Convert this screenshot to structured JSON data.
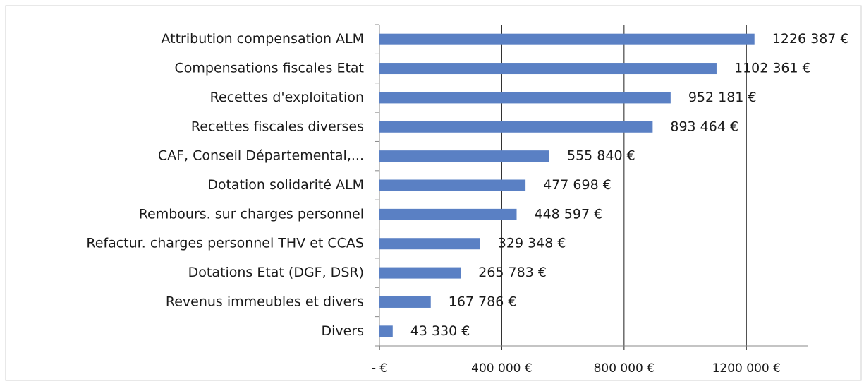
{
  "chart_data": {
    "type": "bar",
    "orientation": "horizontal",
    "categories": [
      "Attribution compensation ALM",
      "Compensations fiscales Etat",
      "Recettes d'exploitation",
      "Recettes fiscales diverses",
      "CAF, Conseil Départemental,...",
      "Dotation solidarité ALM",
      "Rembours. sur charges personnel",
      "Refactur. charges personnel THV et CCAS",
      "Dotations Etat (DGF, DSR)",
      "Revenus immeubles et divers",
      "Divers"
    ],
    "values": [
      1226387,
      1102361,
      952181,
      893464,
      555840,
      477698,
      448597,
      329348,
      265783,
      167786,
      43330
    ],
    "value_labels": [
      "1226 387 €",
      "1102 361 €",
      "952 181 €",
      "893 464 €",
      "555 840 €",
      "477 698 €",
      "448 597 €",
      "329 348 €",
      "265 783 €",
      "167 786 €",
      "43 330 €"
    ],
    "color": "#5a80c4",
    "xlim": [
      0,
      1400000
    ],
    "xticks": [
      {
        "value": 0,
        "label": "-  €"
      },
      {
        "value": 400000,
        "label": "400 000 €"
      },
      {
        "value": 800000,
        "label": "800 000 €"
      },
      {
        "value": 1200000,
        "label": "1200 000 €"
      }
    ],
    "grid": true
  }
}
